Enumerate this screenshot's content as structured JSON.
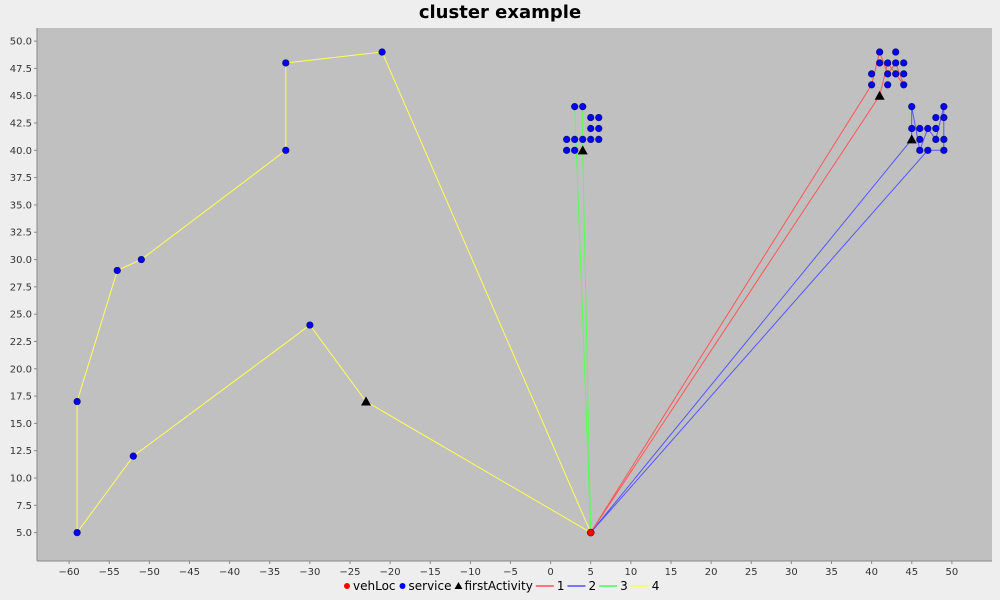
{
  "chart_data": {
    "type": "scatter",
    "title": "cluster example",
    "xlim": [
      -64,
      55
    ],
    "ylim": [
      2.4,
      51.2
    ],
    "x_ticks": [
      -60,
      -55,
      -50,
      -45,
      -40,
      -35,
      -30,
      -25,
      -20,
      -15,
      -10,
      -5,
      0,
      5,
      10,
      15,
      20,
      25,
      30,
      35,
      40,
      45,
      50
    ],
    "y_ticks": [
      5.0,
      7.5,
      10.0,
      12.5,
      15.0,
      17.5,
      20.0,
      22.5,
      25.0,
      27.5,
      30.0,
      32.5,
      35.0,
      37.5,
      40.0,
      42.5,
      45.0,
      47.5,
      50.0
    ],
    "grid": false,
    "background": "#c0c0c0",
    "legend_position": "bottom",
    "legend": [
      {
        "label": "vehLoc",
        "kind": "point",
        "shape": "circle",
        "color": "#ff0000"
      },
      {
        "label": "service",
        "kind": "point",
        "shape": "circle",
        "color": "#0000ff"
      },
      {
        "label": "firstActivity",
        "kind": "point",
        "shape": "triangle",
        "color": "#000000"
      },
      {
        "label": "1",
        "kind": "line",
        "color": "#ff0000"
      },
      {
        "label": "2",
        "kind": "line",
        "color": "#0000ff"
      },
      {
        "label": "3",
        "kind": "line",
        "color": "#00ff00"
      },
      {
        "label": "4",
        "kind": "line",
        "color": "#ffff00"
      }
    ],
    "vehLoc": [
      [
        5,
        5
      ]
    ],
    "service": [
      [
        -59,
        17
      ],
      [
        -59,
        5
      ],
      [
        -54,
        29
      ],
      [
        -52,
        12
      ],
      [
        -51,
        30
      ],
      [
        -33,
        48
      ],
      [
        -33,
        40
      ],
      [
        -30,
        24
      ],
      [
        -21,
        49
      ],
      [
        2,
        41
      ],
      [
        2,
        40
      ],
      [
        3,
        44
      ],
      [
        3,
        41
      ],
      [
        3,
        40
      ],
      [
        4,
        44
      ],
      [
        4,
        41
      ],
      [
        5,
        43
      ],
      [
        5,
        42
      ],
      [
        5,
        41
      ],
      [
        6,
        43
      ],
      [
        6,
        42
      ],
      [
        6,
        41
      ],
      [
        40,
        47
      ],
      [
        40,
        46
      ],
      [
        41,
        49
      ],
      [
        41,
        48
      ],
      [
        42,
        48
      ],
      [
        42,
        47
      ],
      [
        42,
        46
      ],
      [
        43,
        49
      ],
      [
        43,
        48
      ],
      [
        43,
        47
      ],
      [
        44,
        48
      ],
      [
        44,
        47
      ],
      [
        44,
        46
      ],
      [
        45,
        44
      ],
      [
        45,
        42
      ],
      [
        46,
        42
      ],
      [
        46,
        41
      ],
      [
        46,
        40
      ],
      [
        47,
        42
      ],
      [
        47,
        40
      ],
      [
        48,
        43
      ],
      [
        48,
        42
      ],
      [
        48,
        41
      ],
      [
        49,
        44
      ],
      [
        49,
        43
      ],
      [
        49,
        41
      ],
      [
        49,
        40
      ]
    ],
    "firstActivity": [
      [
        -23,
        17
      ],
      [
        4,
        40
      ],
      [
        41,
        45
      ],
      [
        45,
        41
      ]
    ],
    "routes": [
      {
        "name": "1",
        "color": "#ff5555",
        "points": [
          [
            5,
            5
          ],
          [
            40,
            46
          ],
          [
            41,
            49
          ],
          [
            42,
            47
          ],
          [
            43,
            48
          ],
          [
            44,
            46
          ],
          [
            42,
            48
          ],
          [
            41,
            45
          ],
          [
            5,
            5
          ]
        ]
      },
      {
        "name": "2",
        "color": "#5555ff",
        "points": [
          [
            5,
            5
          ],
          [
            45,
            41
          ],
          [
            45,
            44
          ],
          [
            46,
            40
          ],
          [
            47,
            42
          ],
          [
            48,
            41
          ],
          [
            49,
            44
          ],
          [
            49,
            40
          ],
          [
            47,
            40
          ],
          [
            5,
            5
          ]
        ]
      },
      {
        "name": "3",
        "color": "#55ff55",
        "points": [
          [
            5,
            5
          ],
          [
            3,
            44
          ],
          [
            4,
            44
          ],
          [
            4,
            40
          ],
          [
            5,
            5
          ]
        ]
      },
      {
        "name": "4",
        "color": "#ffff55",
        "points": [
          [
            5,
            5
          ],
          [
            -21,
            49
          ],
          [
            -33,
            48
          ],
          [
            -33,
            40
          ],
          [
            -51,
            30
          ],
          [
            -54,
            29
          ],
          [
            -59,
            17
          ],
          [
            -59,
            5
          ],
          [
            -52,
            12
          ],
          [
            -30,
            24
          ],
          [
            -23,
            17
          ],
          [
            5,
            5
          ]
        ]
      }
    ]
  }
}
